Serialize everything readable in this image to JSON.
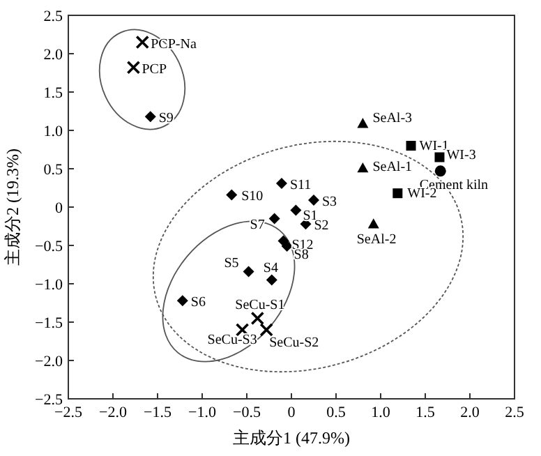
{
  "chart_data": {
    "type": "scatter",
    "xlabel": "主成分1 (47.9%)",
    "ylabel": "主成分2 (19.3%)",
    "xlim": [
      -2.5,
      2.5
    ],
    "ylim": [
      -2.5,
      2.5
    ],
    "xticks": [
      {
        "value": -2.5,
        "label": "−2.5"
      },
      {
        "value": -2.0,
        "label": "−2.0"
      },
      {
        "value": -1.5,
        "label": "−1.5"
      },
      {
        "value": -1.0,
        "label": "−1.0"
      },
      {
        "value": -0.5,
        "label": "−0.5"
      },
      {
        "value": 0,
        "label": "0"
      },
      {
        "value": 0.5,
        "label": "0.5"
      },
      {
        "value": 1.0,
        "label": "1.0"
      },
      {
        "value": 1.5,
        "label": "1.5"
      },
      {
        "value": 2.0,
        "label": "2.0"
      },
      {
        "value": 2.5,
        "label": "2.5"
      }
    ],
    "yticks": [
      {
        "value": -2.5,
        "label": "−2.5"
      },
      {
        "value": -2.0,
        "label": "−2.0"
      },
      {
        "value": -1.5,
        "label": "−1.5"
      },
      {
        "value": -1.0,
        "label": "−1.0"
      },
      {
        "value": -0.5,
        "label": "−0.5"
      },
      {
        "value": 0,
        "label": "0"
      },
      {
        "value": 0.5,
        "label": "0.5"
      },
      {
        "value": 1.0,
        "label": "1.0"
      },
      {
        "value": 1.5,
        "label": "1.5"
      },
      {
        "value": 2.0,
        "label": "2.0"
      },
      {
        "value": 2.5,
        "label": "2.5"
      }
    ],
    "grid": false,
    "series": [
      {
        "color": "#000000",
        "marker": "cross",
        "x": [
          -1.67,
          -1.77,
          -0.38,
          -0.28,
          -0.55
        ],
        "values": [
          2.15,
          1.82,
          -1.45,
          -1.6,
          -1.6
        ]
      },
      {
        "color": "#000000",
        "marker": "diamond",
        "x": [
          -1.58,
          -0.67,
          -0.11,
          0.25,
          0.05,
          0.16,
          -0.19,
          -0.09,
          -0.05,
          -0.22,
          -0.48,
          -1.22
        ],
        "values": [
          1.18,
          0.16,
          0.31,
          0.09,
          -0.04,
          -0.22,
          -0.15,
          -0.44,
          -0.51,
          -0.95,
          -0.84,
          -1.22
        ]
      },
      {
        "color": "#000000",
        "marker": "triangle",
        "x": [
          0.8,
          0.8,
          0.92
        ],
        "values": [
          1.09,
          0.51,
          -0.22
        ]
      },
      {
        "color": "#000000",
        "marker": "square",
        "x": [
          1.34,
          1.66,
          1.19
        ],
        "values": [
          0.8,
          0.65,
          0.18
        ]
      },
      {
        "color": "#000000",
        "marker": "circle",
        "x": [
          1.67
        ],
        "values": [
          0.47
        ]
      }
    ],
    "annotations": [
      {
        "text": "PCP-Na",
        "x": -1.67,
        "y": 2.15
      },
      {
        "text": "PCP",
        "x": -1.77,
        "y": 1.82
      },
      {
        "text": "S9",
        "x": -1.58,
        "y": 1.18
      },
      {
        "text": "S10",
        "x": -0.67,
        "y": 0.16
      },
      {
        "text": "S11",
        "x": -0.11,
        "y": 0.31
      },
      {
        "text": "S3",
        "x": 0.25,
        "y": 0.09
      },
      {
        "text": "S1",
        "x": 0.05,
        "y": -0.04
      },
      {
        "text": "S2",
        "x": 0.16,
        "y": -0.22
      },
      {
        "text": "S7",
        "x": -0.19,
        "y": -0.15
      },
      {
        "text": "S12",
        "x": -0.09,
        "y": -0.44
      },
      {
        "text": "S8",
        "x": -0.05,
        "y": -0.51
      },
      {
        "text": "S4",
        "x": -0.22,
        "y": -0.95
      },
      {
        "text": "S5",
        "x": -0.48,
        "y": -0.84
      },
      {
        "text": "S6",
        "x": -1.22,
        "y": -1.22
      },
      {
        "text": "SeCu-S1",
        "x": -0.38,
        "y": -1.45
      },
      {
        "text": "SeCu-S2",
        "x": -0.28,
        "y": -1.6
      },
      {
        "text": "SeCu-S3",
        "x": -0.55,
        "y": -1.6
      },
      {
        "text": "SeAl-3",
        "x": 0.8,
        "y": 1.09
      },
      {
        "text": "SeAl-1",
        "x": 0.8,
        "y": 0.51
      },
      {
        "text": "SeAl-2",
        "x": 0.92,
        "y": -0.22
      },
      {
        "text": "WI-1",
        "x": 1.34,
        "y": 0.8
      },
      {
        "text": "WI-3",
        "x": 1.66,
        "y": 0.65
      },
      {
        "text": "Cement kiln",
        "x": 1.67,
        "y": 0.47
      },
      {
        "text": "WI-2",
        "x": 1.19,
        "y": 0.18
      }
    ]
  }
}
